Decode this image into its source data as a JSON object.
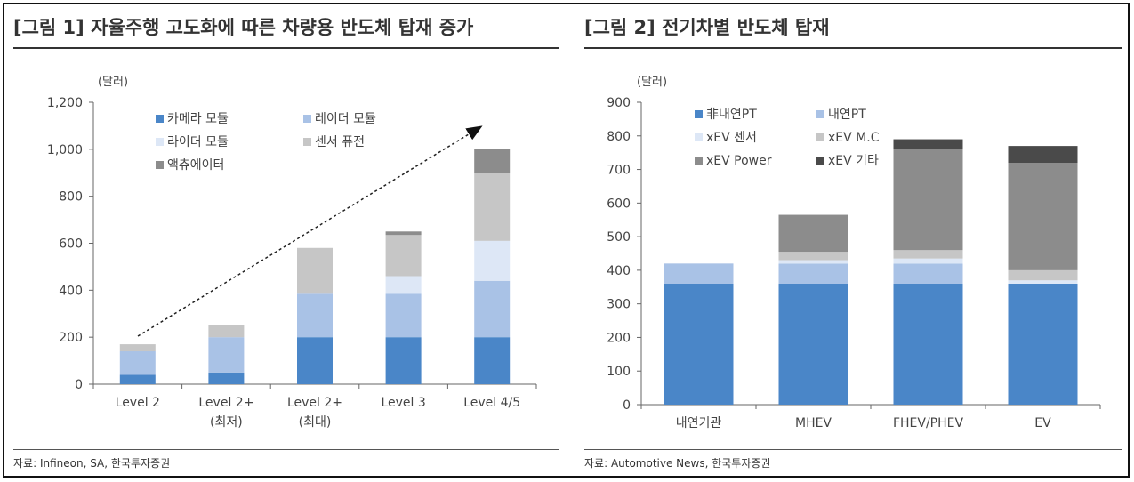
{
  "chart_data": [
    {
      "type": "bar",
      "stacked": true,
      "title": "[그림 1] 자율주행 고도화에 따른 차량용 반도체 탑재 증가",
      "ylabel": "(달러)",
      "ylim": [
        0,
        1200
      ],
      "yticks": [
        "0",
        "200",
        "400",
        "600",
        "800",
        "1,000",
        "1,200"
      ],
      "ytick_values": [
        0,
        200,
        400,
        600,
        800,
        1000,
        1200
      ],
      "categories": [
        [
          "Level 2"
        ],
        [
          "Level 2+",
          "(최저)"
        ],
        [
          "Level 2+",
          "(최대)"
        ],
        [
          "Level 3"
        ],
        [
          "Level 4/5"
        ]
      ],
      "series": [
        {
          "name": "카메라 모듈",
          "color": "#4a86c8",
          "values": [
            40,
            50,
            200,
            200,
            200
          ]
        },
        {
          "name": "레이더 모듈",
          "color": "#a9c2e6",
          "values": [
            100,
            150,
            185,
            185,
            240
          ]
        },
        {
          "name": "라이더 모듈",
          "color": "#dde7f6",
          "values": [
            0,
            0,
            0,
            75,
            170
          ]
        },
        {
          "name": "센서 퓨전",
          "color": "#c6c6c6",
          "values": [
            30,
            50,
            195,
            175,
            290
          ]
        },
        {
          "name": "액츄에이터",
          "color": "#8c8c8c",
          "values": [
            0,
            0,
            0,
            15,
            100
          ]
        }
      ],
      "grid": false,
      "legend_position": "top-left",
      "annotation": "trend-arrow",
      "source": "자료: Infineon, SA, 한국투자증권"
    },
    {
      "type": "bar",
      "stacked": true,
      "title": "[그림 2] 전기차별 반도체 탑재",
      "ylabel": "(달러)",
      "ylim": [
        0,
        900
      ],
      "yticks": [
        "0",
        "100",
        "200",
        "300",
        "400",
        "500",
        "600",
        "700",
        "800",
        "900"
      ],
      "ytick_values": [
        0,
        100,
        200,
        300,
        400,
        500,
        600,
        700,
        800,
        900
      ],
      "categories": [
        [
          "내연기관"
        ],
        [
          "MHEV"
        ],
        [
          "FHEV/PHEV"
        ],
        [
          "EV"
        ]
      ],
      "series": [
        {
          "name": "非내연PT",
          "color": "#4a86c8",
          "values": [
            360,
            360,
            360,
            360
          ]
        },
        {
          "name": "내연PT",
          "color": "#a9c2e6",
          "values": [
            60,
            60,
            60,
            0
          ]
        },
        {
          "name": "xEV 센서",
          "color": "#dde7f6",
          "values": [
            0,
            10,
            15,
            10
          ]
        },
        {
          "name": "xEV M.C",
          "color": "#c6c6c6",
          "values": [
            0,
            25,
            25,
            30
          ]
        },
        {
          "name": "xEV Power",
          "color": "#8c8c8c",
          "values": [
            0,
            110,
            300,
            320
          ]
        },
        {
          "name": "xEV 기타",
          "color": "#4a4a4a",
          "values": [
            0,
            0,
            30,
            50
          ]
        }
      ],
      "grid": false,
      "legend_position": "top-left",
      "source": "자료: Automotive News, 한국투자증권"
    }
  ]
}
